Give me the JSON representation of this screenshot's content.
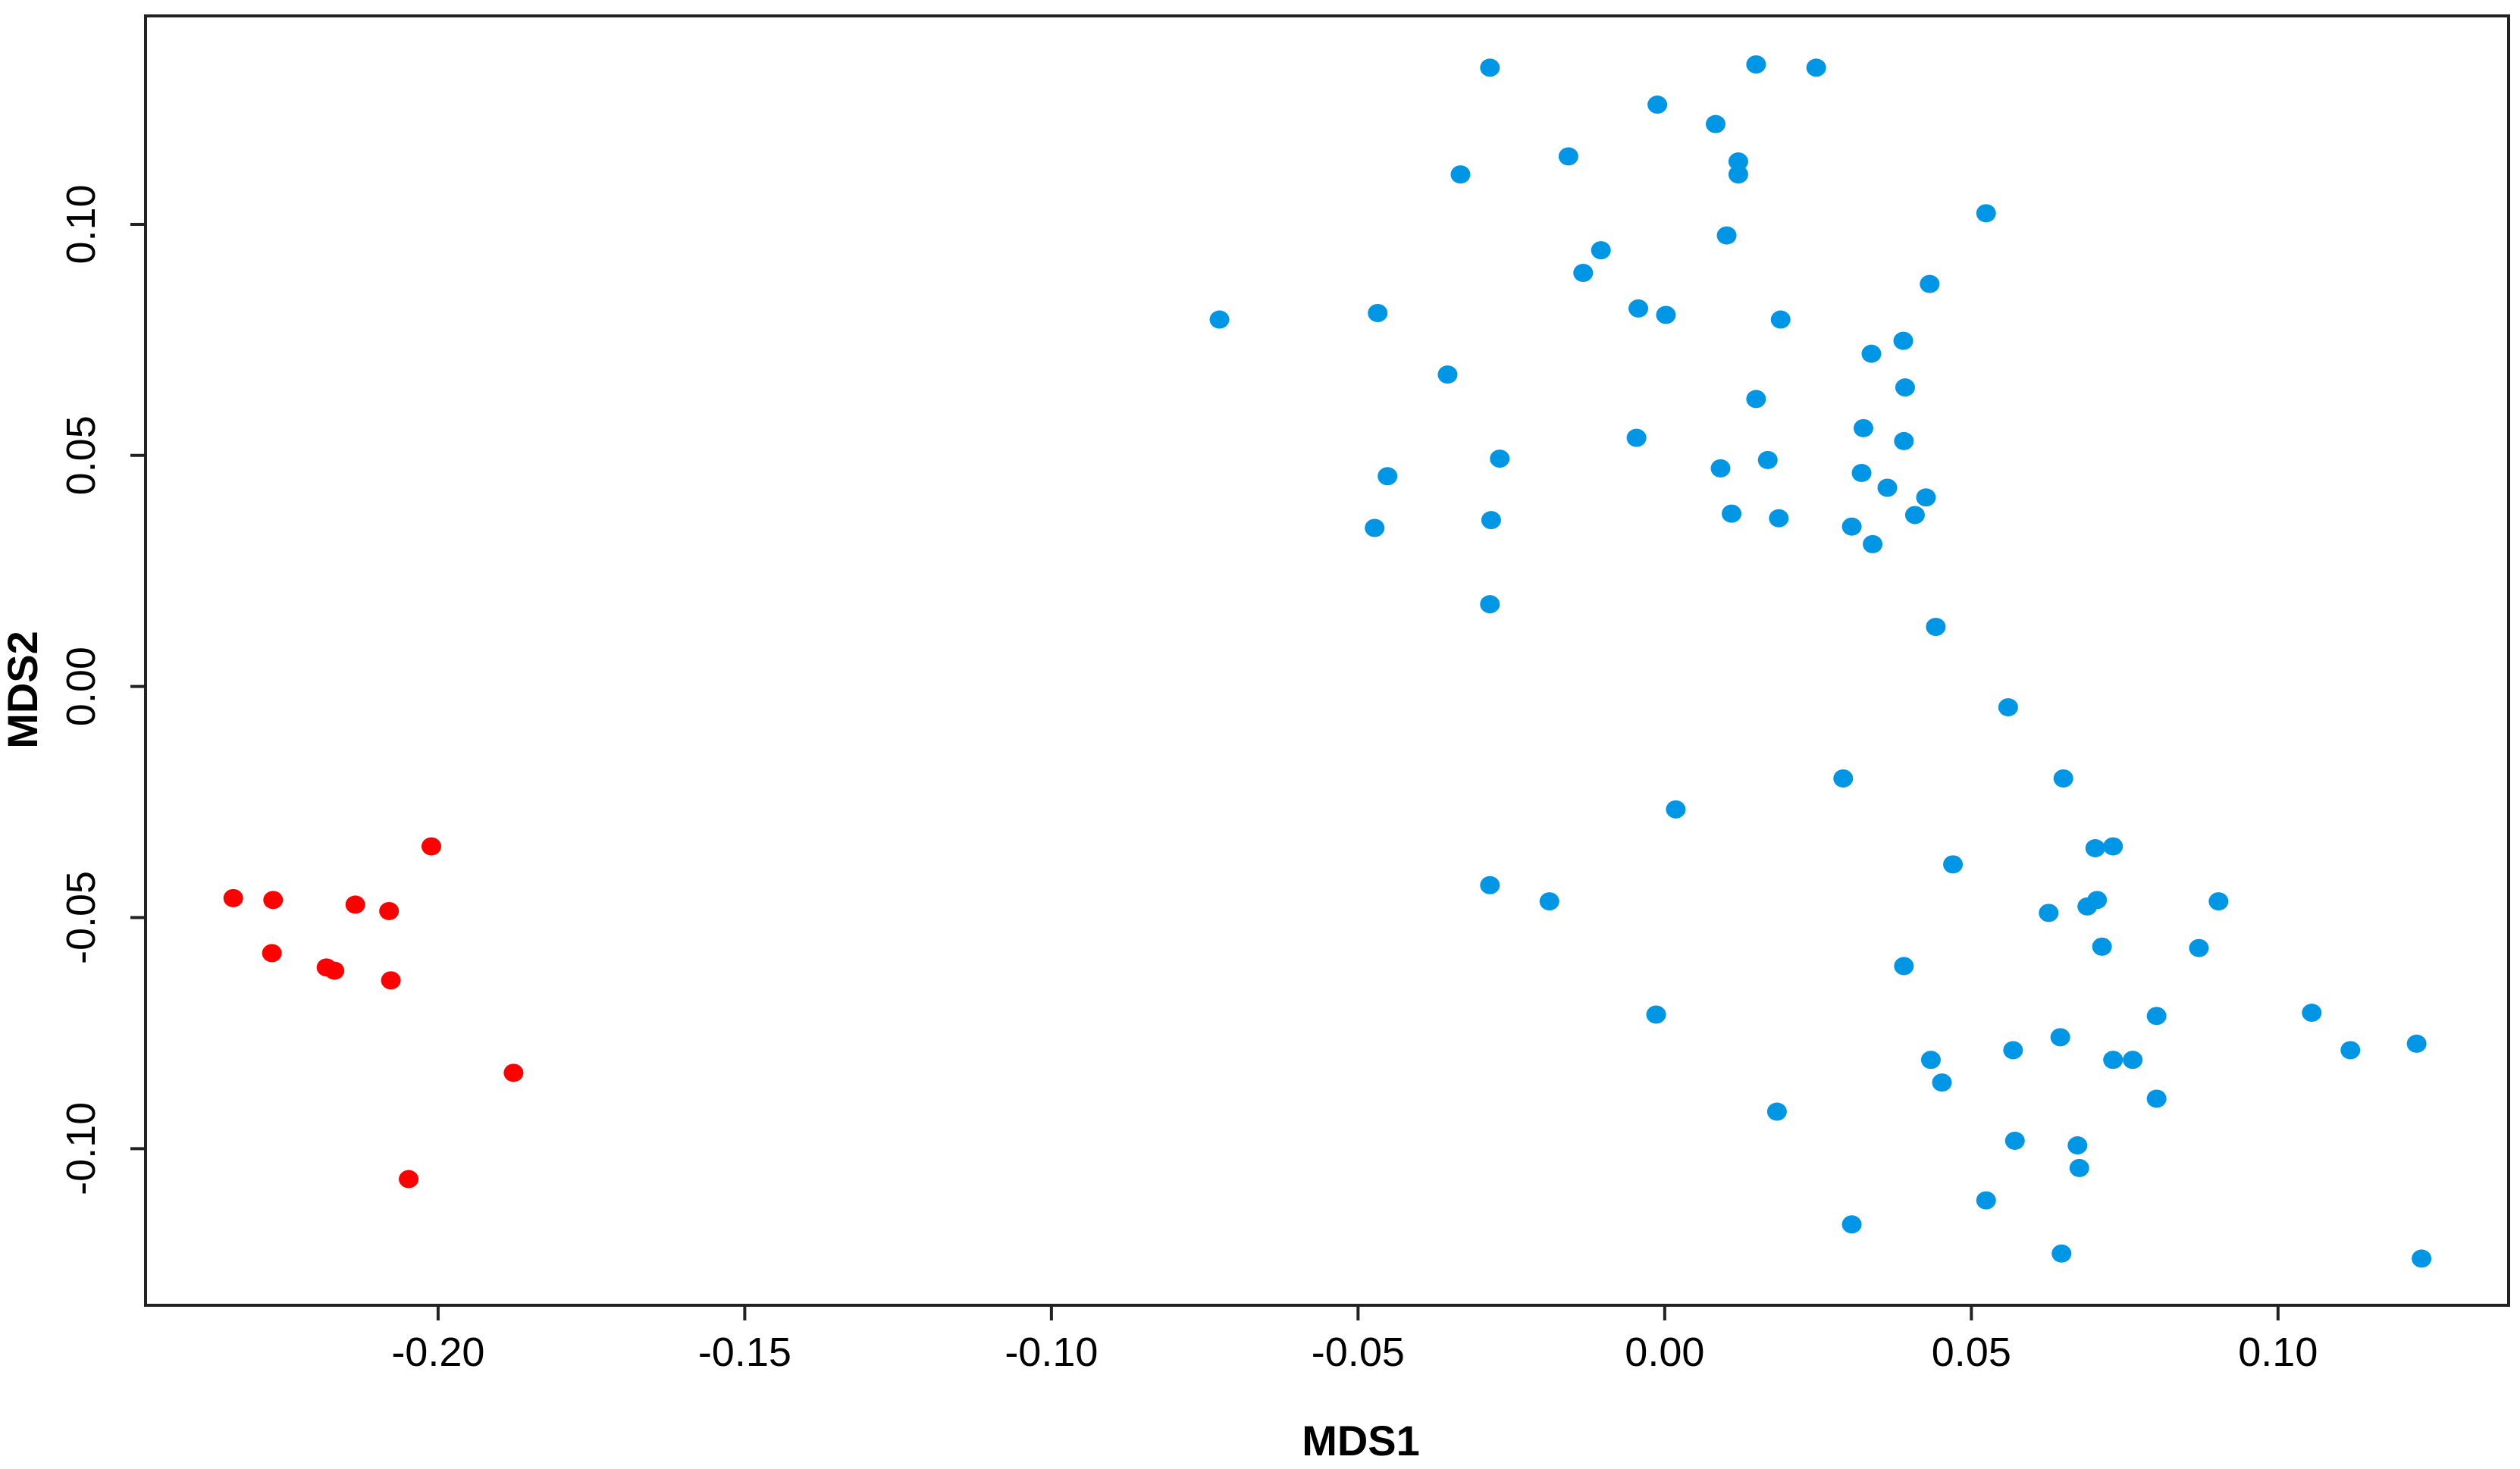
{
  "chart_data": {
    "type": "scatter",
    "x_label": "MDS1",
    "y_label": "MDS2",
    "xlim": [
      -0.2477,
      0.1376
    ],
    "ylim": [
      -0.1339,
      0.1451
    ],
    "xticks": [
      {
        "value": -0.2,
        "label": "-0.20"
      },
      {
        "value": -0.15,
        "label": "-0.15"
      },
      {
        "value": -0.1,
        "label": "-0.10"
      },
      {
        "value": -0.05,
        "label": "-0.05"
      },
      {
        "value": 0,
        "label": "0.00"
      },
      {
        "value": 0.05,
        "label": "0.05"
      },
      {
        "value": 0.1,
        "label": "0.10"
      }
    ],
    "yticks": [
      {
        "value": -0.1,
        "label": "-0.10"
      },
      {
        "value": -0.05,
        "label": "-0.05"
      },
      {
        "value": 0,
        "label": "0.00"
      },
      {
        "value": 0.05,
        "label": "0.05"
      },
      {
        "value": 0.1,
        "label": "0.10"
      }
    ],
    "series": [
      {
        "color": "#ff0000",
        "x": [
          -0.2334,
          -0.2269,
          -0.2271,
          -0.2182,
          -0.2169,
          -0.2135,
          -0.208,
          -0.2077,
          -0.2011,
          -0.1877,
          -0.2048
        ],
        "y": [
          -0.0458,
          -0.0462,
          -0.0577,
          -0.0608,
          -0.0615,
          -0.0472,
          -0.0486,
          -0.0636,
          -0.0346,
          -0.0836,
          -0.1066
        ]
      },
      {
        "color": "#0096e6",
        "x": [
          -0.0726,
          -0.0468,
          -0.0354,
          -0.0452,
          -0.0473,
          -0.0285,
          -0.0333,
          -0.0269,
          -0.0283,
          -0.0285,
          -0.0285,
          -0.0188,
          -0.0157,
          -0.0133,
          -0.0104,
          -0.0043,
          0.0002,
          -0.0046,
          -0.0012,
          0.0083,
          0.012,
          0.012,
          0.0101,
          0.0149,
          0.0247,
          0.0189,
          0.0149,
          0.0091,
          0.0168,
          0.0109,
          0.0186,
          0.0524,
          0.0432,
          0.0337,
          0.0389,
          0.0392,
          0.0324,
          0.039,
          0.0321,
          0.0363,
          0.0426,
          0.0408,
          0.0305,
          0.0339,
          0.0442,
          0.056,
          0.0291,
          0.0018,
          0.065,
          0.047,
          0.0702,
          0.0731,
          0.0626,
          0.0689,
          0.0705,
          0.0903,
          0.0713,
          0.0871,
          0.039,
          -0.0014,
          0.0802,
          0.1055,
          0.0645,
          0.0568,
          0.0434,
          0.0731,
          0.0763,
          0.0452,
          0.1118,
          0.1226,
          0.0802,
          0.0183,
          0.0571,
          0.0673,
          0.0676,
          0.0524,
          0.0305,
          0.0647,
          0.1234
        ],
        "y": [
          0.0794,
          0.0808,
          0.0675,
          0.0455,
          0.0343,
          0.1339,
          0.1108,
          0.0493,
          0.036,
          0.0178,
          -0.043,
          -0.0465,
          0.1147,
          0.0895,
          0.0944,
          0.0818,
          0.0804,
          0.0538,
          0.1259,
          0.1217,
          0.1136,
          0.1108,
          0.0976,
          0.1346,
          0.1339,
          0.0794,
          0.0622,
          0.0472,
          0.049,
          0.0374,
          0.0364,
          0.1024,
          0.0871,
          0.072,
          0.0748,
          0.0647,
          0.0559,
          0.0531,
          0.0462,
          0.043,
          0.0409,
          0.0371,
          0.0346,
          0.0308,
          0.0129,
          -0.0045,
          -0.0199,
          -0.0266,
          -0.0199,
          -0.0385,
          -0.035,
          -0.0346,
          -0.049,
          -0.0476,
          -0.0462,
          -0.0465,
          -0.0563,
          -0.0566,
          -0.0605,
          -0.071,
          -0.0713,
          -0.0706,
          -0.0759,
          -0.0787,
          -0.0808,
          -0.0808,
          -0.0808,
          -0.0857,
          -0.0787,
          -0.0773,
          -0.0892,
          -0.092,
          -0.0983,
          -0.0993,
          -0.1042,
          -0.1112,
          -0.1164,
          -0.1227,
          -0.1238
        ]
      }
    ]
  }
}
